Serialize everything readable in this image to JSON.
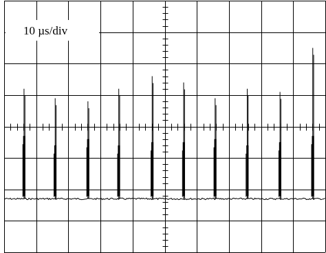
{
  "chart_data": {
    "type": "line",
    "title": "",
    "xlabel": "",
    "ylabel": "",
    "timebase_label": "10 µs/div",
    "divisions": {
      "horizontal": 10,
      "vertical": 8
    },
    "grid": true,
    "center_graticule_ticks": true,
    "x_unit": "µs",
    "xlim": [
      0,
      100
    ],
    "ylim_divisions": [
      -4,
      4
    ],
    "baseline_div": -2.3,
    "series": [
      {
        "pulse_times_us": [
          6.3,
          16.0,
          26.2,
          35.8,
          46.2,
          56.0,
          65.8,
          75.8,
          86.0,
          96.2
        ],
        "pulse_peak_div": [
          1.2,
          0.9,
          0.8,
          1.2,
          1.6,
          1.4,
          0.9,
          1.2,
          1.1,
          2.5
        ],
        "pulse_mid_div": [
          -0.3,
          -0.6,
          -0.4,
          -0.6,
          -0.5,
          -0.5,
          -0.4,
          -0.6,
          -0.5,
          -0.3
        ]
      }
    ],
    "color": "#000000"
  }
}
